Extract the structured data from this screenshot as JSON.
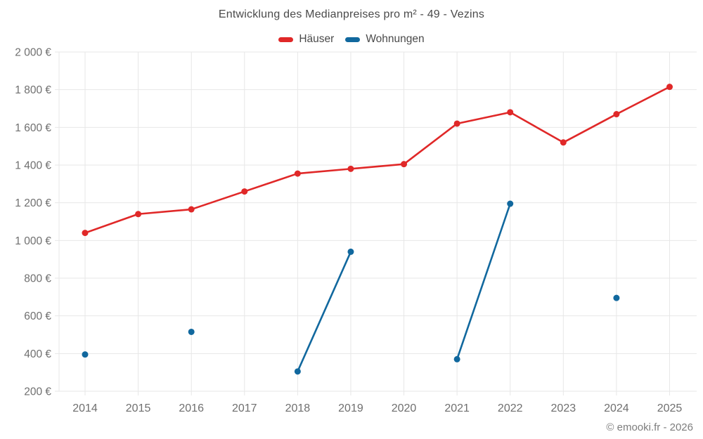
{
  "page_title": "Entwicklung des Medianpreises pro m² - 49 - Vezins",
  "chart_data": {
    "type": "line",
    "title": "Entwicklung des Medianpreises pro m² - 49 - Vezins",
    "categories": [
      "2014",
      "2015",
      "2016",
      "2017",
      "2018",
      "2019",
      "2020",
      "2021",
      "2022",
      "2023",
      "2024",
      "2025"
    ],
    "series": [
      {
        "name": "Häuser",
        "color": "#e02828",
        "values": [
          1040,
          1140,
          1165,
          1260,
          1355,
          1380,
          1405,
          1620,
          1680,
          1520,
          1670,
          1815
        ]
      },
      {
        "name": "Wohnungen",
        "color": "#11689e",
        "values": [
          395,
          null,
          515,
          null,
          305,
          940,
          null,
          370,
          1195,
          null,
          695,
          null
        ]
      }
    ],
    "ylim": [
      200,
      2000
    ],
    "ytick_step": 200,
    "ytick_labels": [
      "200 €",
      "400 €",
      "600 €",
      "800 €",
      "1 000 €",
      "1 200 €",
      "1 400 €",
      "1 600 €",
      "1 800 €",
      "2 000 €"
    ],
    "xlabel": "",
    "ylabel": "",
    "grid": true,
    "legend_position": "top",
    "colors": {
      "grid": "#e7e7e7",
      "axis_text": "#6f6f6f",
      "title_text": "#4a4a4a"
    }
  },
  "footer": {
    "credit": "© emooki.fr - 2026"
  }
}
